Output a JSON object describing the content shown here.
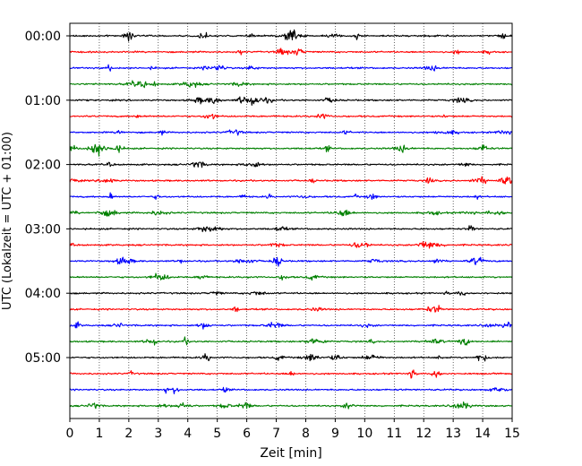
{
  "chart_data": {
    "type": "line",
    "xlabel": "Zeit  [min]",
    "ylabel": "UTC (Lokalzeit = UTC + 01:00)",
    "xlim": [
      0,
      15
    ],
    "x_ticks": [
      "0",
      "1",
      "2",
      "3",
      "4",
      "5",
      "6",
      "7",
      "8",
      "9",
      "10",
      "11",
      "12",
      "13",
      "14",
      "15"
    ],
    "y_tick_labels": [
      "00:00",
      "01:00",
      "02:00",
      "03:00",
      "04:00",
      "05:00"
    ],
    "grid": "vertical dotted lines at each minute",
    "trace_colors": [
      "#000000",
      "#ff0000",
      "#0000ff",
      "#008000"
    ],
    "trace_count": 24,
    "trace_minutes": 15,
    "series": [
      {
        "start": "00:00"
      },
      {
        "start": "00:15"
      },
      {
        "start": "00:30"
      },
      {
        "start": "00:45"
      },
      {
        "start": "01:00"
      },
      {
        "start": "01:15"
      },
      {
        "start": "01:30"
      },
      {
        "start": "01:45"
      },
      {
        "start": "02:00"
      },
      {
        "start": "02:15"
      },
      {
        "start": "02:30"
      },
      {
        "start": "02:45"
      },
      {
        "start": "03:00"
      },
      {
        "start": "03:15"
      },
      {
        "start": "03:30"
      },
      {
        "start": "03:45"
      },
      {
        "start": "04:00"
      },
      {
        "start": "04:15"
      },
      {
        "start": "04:30"
      },
      {
        "start": "04:45"
      },
      {
        "start": "05:00"
      },
      {
        "start": "05:15"
      },
      {
        "start": "05:30"
      },
      {
        "start": "05:45"
      }
    ]
  }
}
